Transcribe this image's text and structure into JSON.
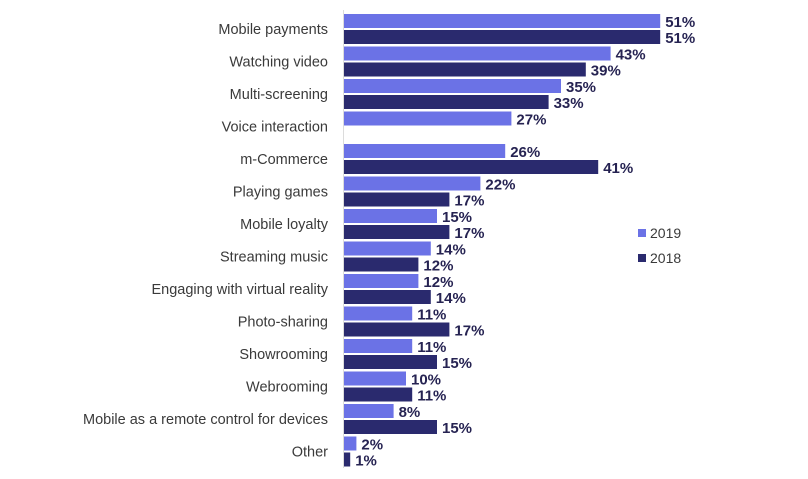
{
  "chart_data": {
    "type": "bar",
    "orientation": "horizontal",
    "categories": [
      "Mobile payments",
      "Watching video",
      "Multi-screening",
      "Voice interaction",
      "m-Commerce",
      "Playing games",
      "Mobile loyalty",
      "Streaming music",
      "Engaging with virtual reality",
      "Photo-sharing",
      "Showrooming",
      "Webrooming",
      "Mobile as a remote control for devices",
      "Other"
    ],
    "series": [
      {
        "name": "2019",
        "color": "#6b72e6",
        "values": [
          51,
          43,
          35,
          27,
          26,
          22,
          15,
          14,
          12,
          11,
          11,
          10,
          8,
          2
        ],
        "labels": [
          "51%",
          "43%",
          "35%",
          "27%",
          "26%",
          "22%",
          "15%",
          "14%",
          "12%",
          "11%",
          "11%",
          "10%",
          "8%",
          "2%"
        ]
      },
      {
        "name": "2018",
        "color": "#2a2a6e",
        "values": [
          51,
          39,
          33,
          null,
          41,
          17,
          17,
          12,
          14,
          17,
          15,
          11,
          15,
          1
        ],
        "labels": [
          "51%",
          "39%",
          "33%",
          null,
          "41%",
          "17%",
          "17%",
          "12%",
          "14%",
          "17%",
          "15%",
          "11%",
          "15%",
          "1%"
        ]
      }
    ],
    "legend": {
      "position": "right",
      "entries": [
        "2019",
        "2018"
      ]
    },
    "grid": false,
    "xlim": [
      0,
      51
    ],
    "title": "",
    "xlabel": "",
    "ylabel": ""
  }
}
